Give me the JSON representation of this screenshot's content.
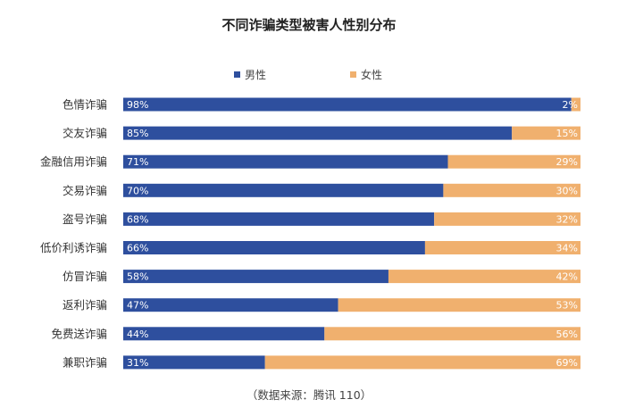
{
  "chart_data": {
    "type": "bar",
    "orientation": "horizontal",
    "stacked": true,
    "title": "不同诈骗类型被害人性别分布",
    "categories": [
      "色情诈骗",
      "交友诈骗",
      "金融信用诈骗",
      "交易诈骗",
      "盗号诈骗",
      "低价利诱诈骗",
      "仿冒诈骗",
      "返利诈骗",
      "免费送诈骗",
      "兼职诈骗"
    ],
    "series": [
      {
        "name": "男性",
        "color": "#2e4f9e",
        "values": [
          98,
          85,
          71,
          70,
          68,
          66,
          58,
          47,
          44,
          31
        ],
        "labels": [
          "98%",
          "85%",
          "71%",
          "70%",
          "68%",
          "66%",
          "58%",
          "47%",
          "44%",
          "31%"
        ]
      },
      {
        "name": "女性",
        "color": "#f0b06e",
        "values": [
          2,
          15,
          29,
          30,
          32,
          34,
          42,
          53,
          56,
          69
        ],
        "labels": [
          "2%",
          "15%",
          "29%",
          "30%",
          "32%",
          "34%",
          "42%",
          "53%",
          "56%",
          "69%"
        ]
      }
    ],
    "xlim": [
      0,
      100
    ],
    "legend_position": "top-center",
    "grid": false
  },
  "source": "（数据来源：腾讯 110）"
}
